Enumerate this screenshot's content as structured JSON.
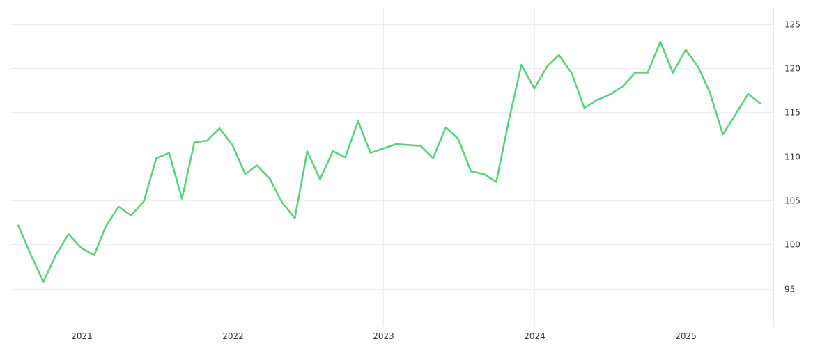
{
  "chart_data": {
    "type": "line",
    "title": "",
    "xlabel": "",
    "ylabel": "",
    "x_ticks": [
      "2021",
      "2022",
      "2023",
      "2024",
      "2025"
    ],
    "y_ticks": [
      95,
      100,
      105,
      110,
      115,
      120,
      125
    ],
    "ylim": [
      90.8,
      126.8
    ],
    "xlim": [
      "2020-07-15",
      "2025-08-01"
    ],
    "y_axis_position": "right",
    "grid": true,
    "legend": "none",
    "color": "#5ad17e",
    "series": [
      {
        "x": [
          "2020-08-01",
          "2020-09-01",
          "2020-10-01",
          "2020-11-01",
          "2020-12-01",
          "2021-01-01",
          "2021-02-01",
          "2021-03-01",
          "2021-04-01",
          "2021-05-01",
          "2021-06-01",
          "2021-07-01",
          "2021-08-01",
          "2021-09-01",
          "2021-10-01",
          "2021-11-01",
          "2021-12-01",
          "2022-01-01",
          "2022-02-01",
          "2022-03-01",
          "2022-04-01",
          "2022-05-01",
          "2022-06-01",
          "2022-07-01",
          "2022-08-01",
          "2022-09-01",
          "2022-10-01",
          "2022-11-01",
          "2022-12-01",
          "2023-01-01",
          "2023-02-01",
          "2023-03-01",
          "2023-04-01",
          "2023-05-01",
          "2023-06-01",
          "2023-07-01",
          "2023-08-01",
          "2023-09-01",
          "2023-10-01",
          "2023-11-01",
          "2023-12-01",
          "2024-01-01",
          "2024-02-01",
          "2024-03-01",
          "2024-04-01",
          "2024-05-01",
          "2024-06-01",
          "2024-07-01",
          "2024-08-01",
          "2024-09-01",
          "2024-10-01",
          "2024-11-01",
          "2024-12-01",
          "2025-01-01",
          "2025-02-01",
          "2025-03-01",
          "2025-04-01",
          "2025-05-01",
          "2025-06-01",
          "2025-07-01"
        ],
        "y": [
          102.2,
          98.8,
          95.8,
          98.9,
          101.2,
          99.6,
          98.8,
          102.1,
          104.3,
          103.3,
          104.9,
          109.8,
          110.4,
          105.2,
          111.6,
          111.8,
          113.2,
          111.3,
          108.0,
          109.0,
          107.5,
          104.8,
          103.0,
          110.6,
          107.4,
          110.6,
          109.9,
          114.0,
          110.4,
          110.9,
          111.4,
          111.3,
          111.2,
          109.8,
          113.3,
          112.0,
          108.3,
          108.0,
          107.1,
          114.2,
          120.4,
          117.7,
          120.2,
          121.5,
          119.4,
          115.5,
          116.4,
          117.0,
          117.9,
          119.5,
          119.5,
          123.0,
          119.5,
          122.1,
          120.1,
          117.2,
          112.5,
          114.7,
          117.1,
          116.0
        ]
      }
    ]
  }
}
